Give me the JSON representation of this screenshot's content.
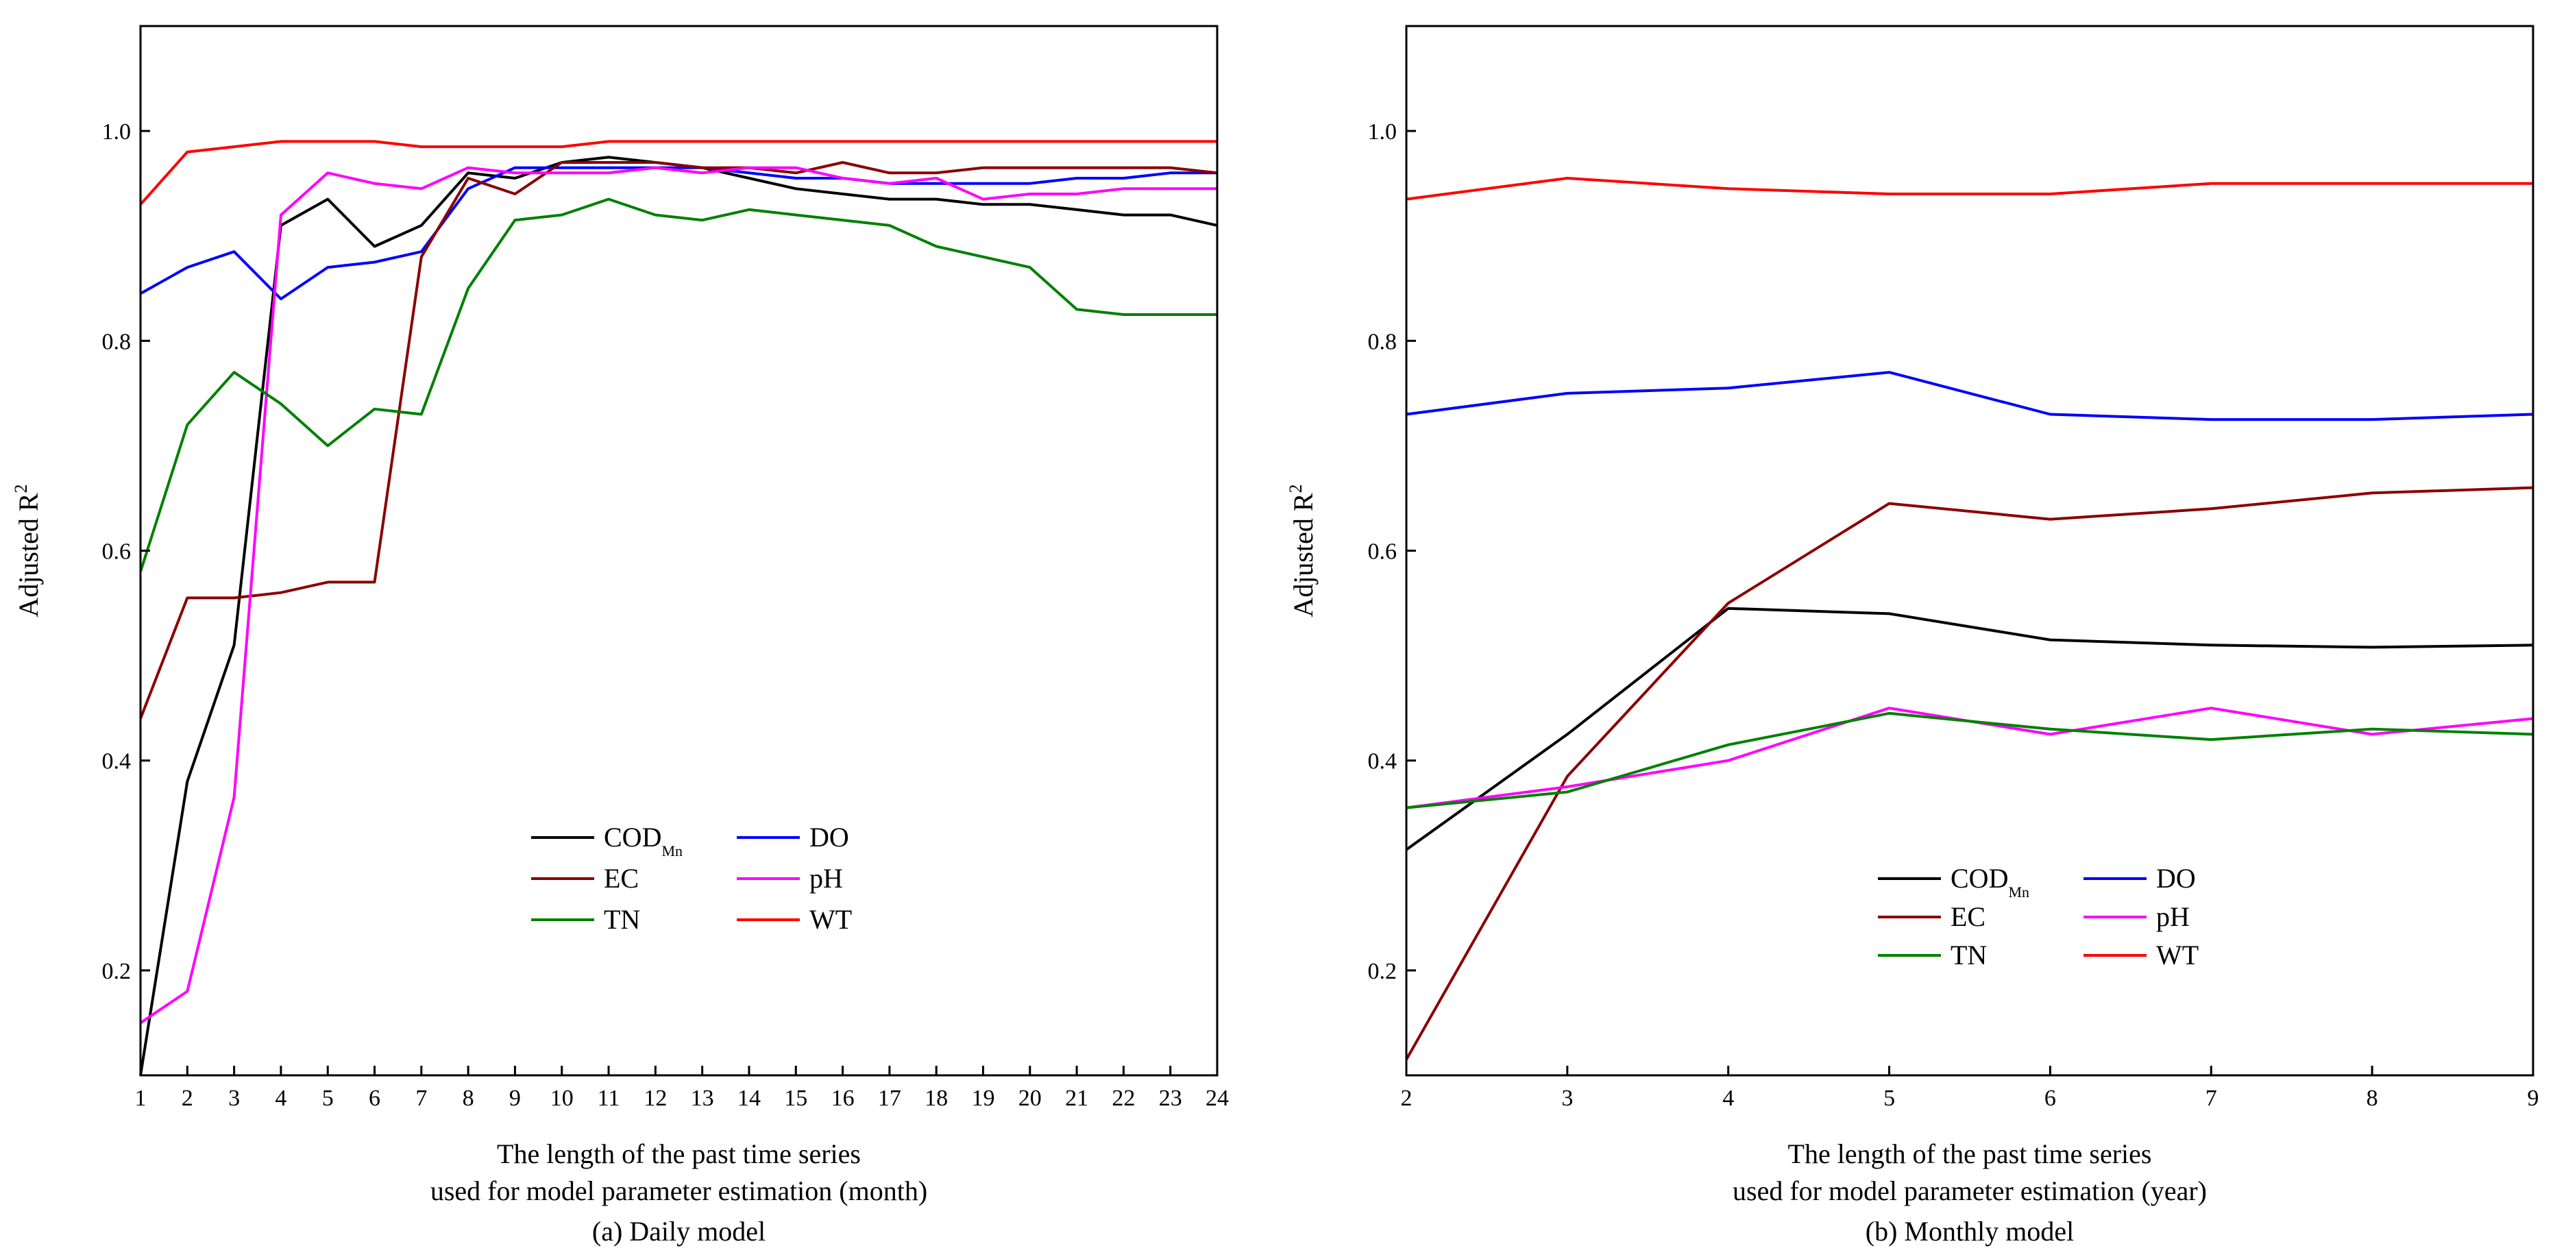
{
  "chart_data": [
    {
      "id": "a",
      "type": "line",
      "caption": "(a) Daily model",
      "xlabel_lines": [
        "The length of the past time series",
        "used for model parameter estimation (month)"
      ],
      "ylabel": "Adjusted R",
      "ylabel_sup": "2",
      "xlim": [
        1,
        24
      ],
      "ylim": [
        0.1,
        1.1
      ],
      "xticks": [
        1,
        2,
        3,
        4,
        5,
        6,
        7,
        8,
        9,
        10,
        11,
        12,
        13,
        14,
        15,
        16,
        17,
        18,
        19,
        20,
        21,
        22,
        23,
        24
      ],
      "yticks": [
        0.2,
        0.4,
        0.6,
        0.8,
        1.0
      ],
      "ytick_labels": [
        "0.2",
        "0.4",
        "0.6",
        "0.8",
        "1.0"
      ],
      "x": [
        1,
        2,
        3,
        4,
        5,
        6,
        7,
        8,
        9,
        10,
        11,
        12,
        13,
        14,
        15,
        16,
        17,
        18,
        19,
        20,
        21,
        22,
        23,
        24
      ],
      "series": [
        {
          "key": "codmn",
          "name": "COD",
          "sub": "Mn",
          "color": "#000000",
          "values": [
            0.1,
            0.38,
            0.51,
            0.91,
            0.935,
            0.89,
            0.91,
            0.96,
            0.955,
            0.97,
            0.975,
            0.97,
            0.965,
            0.955,
            0.945,
            0.94,
            0.935,
            0.935,
            0.93,
            0.93,
            0.925,
            0.92,
            0.92,
            0.91
          ]
        },
        {
          "key": "do",
          "name": "DO",
          "sub": "",
          "color": "#0000ff",
          "values": [
            0.845,
            0.87,
            0.885,
            0.84,
            0.87,
            0.875,
            0.885,
            0.945,
            0.965,
            0.965,
            0.965,
            0.965,
            0.965,
            0.96,
            0.955,
            0.955,
            0.95,
            0.95,
            0.95,
            0.95,
            0.955,
            0.955,
            0.96,
            0.96
          ]
        },
        {
          "key": "ec",
          "name": "EC",
          "sub": "",
          "color": "#8b0000",
          "values": [
            0.44,
            0.555,
            0.555,
            0.56,
            0.57,
            0.57,
            0.88,
            0.955,
            0.94,
            0.97,
            0.97,
            0.97,
            0.965,
            0.965,
            0.96,
            0.97,
            0.96,
            0.96,
            0.965,
            0.965,
            0.965,
            0.965,
            0.965,
            0.96
          ]
        },
        {
          "key": "ph",
          "name": "pH",
          "sub": "",
          "color": "#ff00ff",
          "values": [
            0.15,
            0.18,
            0.365,
            0.92,
            0.96,
            0.95,
            0.945,
            0.965,
            0.96,
            0.96,
            0.96,
            0.965,
            0.96,
            0.965,
            0.965,
            0.955,
            0.95,
            0.955,
            0.935,
            0.94,
            0.94,
            0.945,
            0.945,
            0.945
          ]
        },
        {
          "key": "tn",
          "name": "TN",
          "sub": "",
          "color": "#008000",
          "values": [
            0.58,
            0.72,
            0.77,
            0.74,
            0.7,
            0.735,
            0.73,
            0.85,
            0.915,
            0.92,
            0.935,
            0.92,
            0.915,
            0.925,
            0.92,
            0.915,
            0.91,
            0.89,
            0.88,
            0.87,
            0.83,
            0.825,
            0.825,
            0.825
          ]
        },
        {
          "key": "wt",
          "name": "WT",
          "sub": "",
          "color": "#ff0000",
          "values": [
            0.93,
            0.98,
            0.985,
            0.99,
            0.99,
            0.99,
            0.985,
            0.985,
            0.985,
            0.985,
            0.99,
            0.99,
            0.99,
            0.99,
            0.99,
            0.99,
            0.99,
            0.99,
            0.99,
            0.99,
            0.99,
            0.99,
            0.99,
            0.99
          ]
        }
      ],
      "legend_position": "lower-center"
    },
    {
      "id": "b",
      "type": "line",
      "caption": "(b) Monthly model",
      "xlabel_lines": [
        "The length of the past time series",
        "used for model parameter estimation (year)"
      ],
      "ylabel": "Adjusted R",
      "ylabel_sup": "2",
      "xlim": [
        2,
        9
      ],
      "ylim": [
        0.1,
        1.1
      ],
      "xticks": [
        2,
        3,
        4,
        5,
        6,
        7,
        8,
        9
      ],
      "yticks": [
        0.2,
        0.4,
        0.6,
        0.8,
        1.0
      ],
      "ytick_labels": [
        "0.2",
        "0.4",
        "0.6",
        "0.8",
        "1.0"
      ],
      "x": [
        2,
        3,
        4,
        5,
        6,
        7,
        8,
        9
      ],
      "series": [
        {
          "key": "codmn",
          "name": "COD",
          "sub": "Mn",
          "color": "#000000",
          "values": [
            0.315,
            0.425,
            0.545,
            0.54,
            0.515,
            0.51,
            0.508,
            0.51
          ]
        },
        {
          "key": "do",
          "name": "DO",
          "sub": "",
          "color": "#0000ff",
          "values": [
            0.73,
            0.75,
            0.755,
            0.77,
            0.73,
            0.725,
            0.725,
            0.73
          ]
        },
        {
          "key": "ec",
          "name": "EC",
          "sub": "",
          "color": "#8b0000",
          "values": [
            0.115,
            0.385,
            0.55,
            0.645,
            0.63,
            0.64,
            0.655,
            0.66
          ]
        },
        {
          "key": "ph",
          "name": "pH",
          "sub": "",
          "color": "#ff00ff",
          "values": [
            0.355,
            0.375,
            0.4,
            0.45,
            0.425,
            0.45,
            0.425,
            0.44
          ]
        },
        {
          "key": "tn",
          "name": "TN",
          "sub": "",
          "color": "#008000",
          "values": [
            0.355,
            0.37,
            0.415,
            0.445,
            0.43,
            0.42,
            0.43,
            0.425
          ]
        },
        {
          "key": "wt",
          "name": "WT",
          "sub": "",
          "color": "#ff0000",
          "values": [
            0.935,
            0.955,
            0.945,
            0.94,
            0.94,
            0.95,
            0.95,
            0.95
          ]
        }
      ],
      "legend_position": "lower-center"
    }
  ]
}
